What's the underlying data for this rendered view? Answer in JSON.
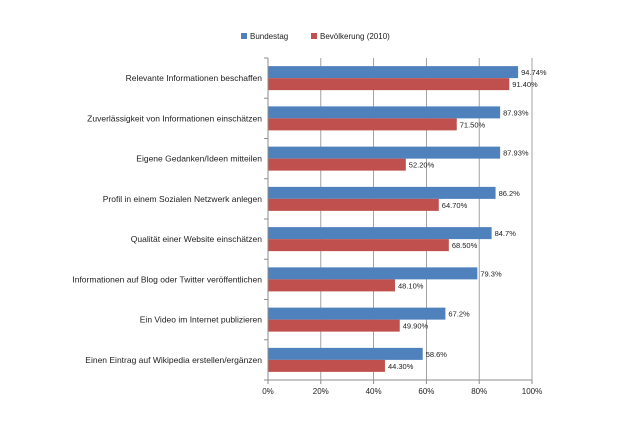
{
  "chart_data": {
    "type": "bar",
    "orientation": "horizontal",
    "categories": [
      "Relevante Informationen beschaffen",
      "Zuverlässigkeit von Informationen einschätzen",
      "Eigene Gedanken/Ideen mitteilen",
      "Profil in einem Sozialen Netzwerk anlegen",
      "Qualität einer Website einschätzen",
      "Informationen auf Blog oder Twitter veröffentlichen",
      "Ein Video im Internet publizieren",
      "Einen Eintrag auf Wikipedia erstellen/ergänzen"
    ],
    "series": [
      {
        "name": "Bundestag",
        "color": "#4f81bd",
        "values": [
          94.74,
          87.93,
          87.93,
          86.2,
          84.7,
          79.3,
          67.2,
          58.6
        ],
        "labels": [
          "94.74%",
          "87.93%",
          "87.93%",
          "86.2%",
          "84.7%",
          "79.3%",
          "67.2%",
          "58.6%"
        ]
      },
      {
        "name": "Bevölkerung (2010)",
        "color": "#c0504d",
        "values": [
          91.4,
          71.5,
          52.2,
          64.7,
          68.5,
          48.1,
          49.9,
          44.3
        ],
        "labels": [
          "91.40%",
          "71.50%",
          "52.20%",
          "64.70%",
          "68.50%",
          "48.10%",
          "49.90%",
          "44.30%"
        ]
      }
    ],
    "xlim": [
      0,
      100
    ],
    "ticks": [
      0,
      20,
      40,
      60,
      80,
      100
    ],
    "tick_labels": [
      "0%",
      "20%",
      "40%",
      "60%",
      "80%",
      "100%"
    ],
    "grid": "vertical",
    "legend_position": "top",
    "title": "",
    "xlabel": "",
    "ylabel": ""
  }
}
